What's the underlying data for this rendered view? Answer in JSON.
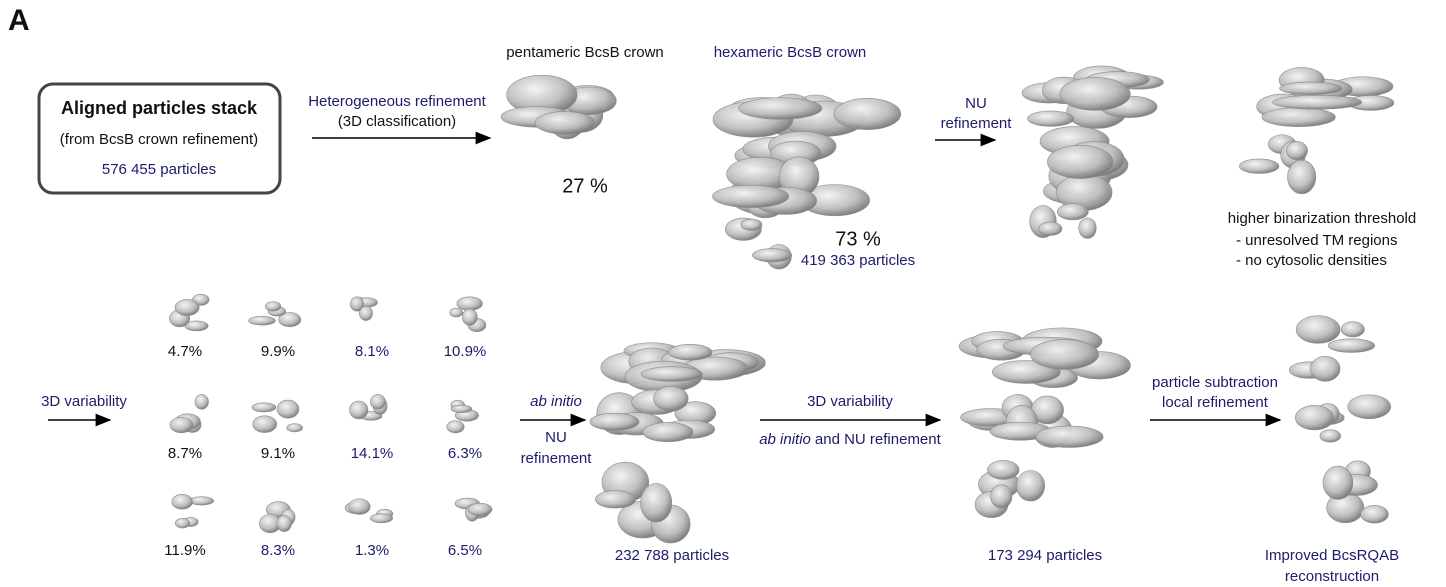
{
  "panel_label": "A",
  "input_box": {
    "title": "Aligned particles stack",
    "subtitle": "(from BcsB crown refinement)",
    "particles": "576 455 particles"
  },
  "step1": {
    "lines": [
      "Heterogeneous refinement",
      "(3D classification)"
    ]
  },
  "classes": [
    {
      "label": "pentameric BcsB crown",
      "percent": "27 %"
    },
    {
      "label": "hexameric BcsB crown",
      "percent": "73 %",
      "particles": "419 363 particles"
    }
  ],
  "step2": {
    "lines": [
      "NU",
      "refinement"
    ]
  },
  "note": {
    "lines": [
      "higher binarization threshold",
      "- unresolved TM regions",
      "- no cytosolic densities"
    ]
  },
  "step3": {
    "label": "3D variability"
  },
  "variability_clusters": [
    [
      "4.7%",
      "9.9%",
      "8.1%",
      "10.9%"
    ],
    [
      "8.7%",
      "9.1%",
      "14.1%",
      "6.3%"
    ],
    [
      "11.9%",
      "8.3%",
      "1.3%",
      "6.5%"
    ]
  ],
  "step4": {
    "lines": [
      "ab initio",
      "NU",
      "refinement"
    ]
  },
  "map1": {
    "particles": "232 788 particles"
  },
  "step5": {
    "line1": "3D variability",
    "line2_italic": "ab initio",
    "line2_rest": "and NU refinement"
  },
  "map2": {
    "particles": "173 294 particles"
  },
  "step6": {
    "lines": [
      "particle subtraction",
      "local refinement"
    ]
  },
  "final": {
    "lines": [
      "Improved BcsRQAB",
      "reconstruction"
    ]
  }
}
